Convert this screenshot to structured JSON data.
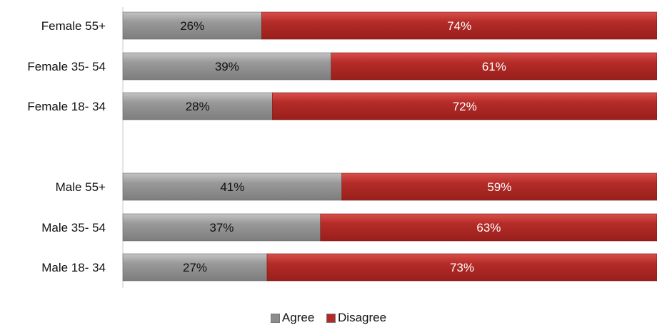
{
  "chart_data": {
    "type": "bar",
    "orientation": "horizontal",
    "stacked": "100%",
    "categories": [
      "Female 55+",
      "Female 35- 54",
      "Female 18- 34",
      "Male 55+",
      "Male   35- 54",
      "Male   18- 34"
    ],
    "series": [
      {
        "name": "Agree",
        "color": "#8c8c8c",
        "values": [
          26,
          39,
          28,
          41,
          37,
          27
        ]
      },
      {
        "name": "Disagree",
        "color": "#b02a27",
        "values": [
          74,
          61,
          72,
          59,
          63,
          73
        ]
      }
    ],
    "value_suffix": "%",
    "xlim": [
      0,
      100
    ],
    "grid": false,
    "legend_position": "bottom"
  }
}
